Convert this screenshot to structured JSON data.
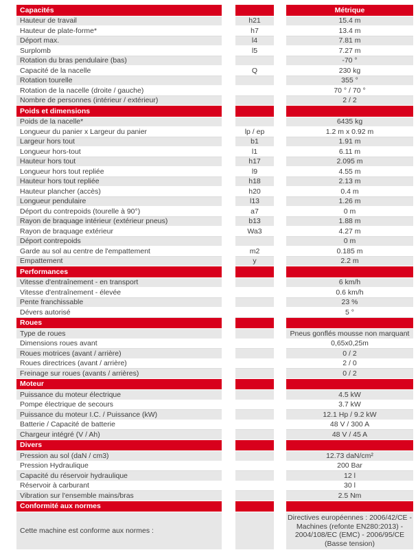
{
  "meta": {
    "accent_red": "#d8001c",
    "stripe_gray": "#e7e7e7",
    "text_color": "#3d3d3d"
  },
  "table": {
    "metric_header": "Métrique",
    "sections": [
      {
        "title": "Capacités",
        "rows": [
          {
            "label": "Hauteur de travail",
            "symbol": "h21",
            "value": "15.4 m"
          },
          {
            "label": "Hauteur de plate-forme*",
            "symbol": "h7",
            "value": "13.4 m"
          },
          {
            "label": "Déport max.",
            "symbol": "l4",
            "value": "7.81 m"
          },
          {
            "label": "Surplomb",
            "symbol": "l5",
            "value": "7.27 m"
          },
          {
            "label": "Rotation du bras pendulaire (bas)",
            "symbol": "",
            "value": "-70 °"
          },
          {
            "label": "Capacité de la nacelle",
            "symbol": "Q",
            "value": "230 kg"
          },
          {
            "label": "Rotation tourelle",
            "symbol": "",
            "value": "355 °"
          },
          {
            "label": "Rotation de la nacelle (droite / gauche)",
            "symbol": "",
            "value": "70 ° / 70 °"
          },
          {
            "label": "Nombre de personnes (intérieur / extérieur)",
            "symbol": "",
            "value": "2 / 2"
          }
        ]
      },
      {
        "title": "Poids et dimensions",
        "rows": [
          {
            "label": "Poids de la nacelle*",
            "symbol": "",
            "value": "6435 kg"
          },
          {
            "label": "Longueur du panier x Largeur du panier",
            "symbol": "lp / ep",
            "value": "1.2 m x 0.92 m"
          },
          {
            "label": "Largeur hors tout",
            "symbol": "b1",
            "value": "1.91 m"
          },
          {
            "label": "Longueur hors-tout",
            "symbol": "l1",
            "value": "6.11 m"
          },
          {
            "label": "Hauteur hors tout",
            "symbol": "h17",
            "value": "2.095 m"
          },
          {
            "label": "Longueur hors tout repliée",
            "symbol": "l9",
            "value": "4.55 m"
          },
          {
            "label": "Hauteur hors tout repliée",
            "symbol": "h18",
            "value": "2.13 m"
          },
          {
            "label": "Hauteur plancher (accès)",
            "symbol": "h20",
            "value": "0.4 m"
          },
          {
            "label": "Longueur pendulaire",
            "symbol": "l13",
            "value": "1.26 m"
          },
          {
            "label": "Déport du contrepoids (tourelle à 90°)",
            "symbol": "a7",
            "value": "0 m"
          },
          {
            "label": "Rayon de braquage intérieur (extérieur pneus)",
            "symbol": "b13",
            "value": "1.88 m"
          },
          {
            "label": "Rayon de braquage extérieur",
            "symbol": "Wa3",
            "value": "4.27 m"
          },
          {
            "label": "Déport contrepoids",
            "symbol": "",
            "value": "0 m"
          },
          {
            "label": "Garde au sol au centre de l'empattement",
            "symbol": "m2",
            "value": "0.185 m"
          },
          {
            "label": "Empattement",
            "symbol": "y",
            "value": "2.2 m"
          }
        ]
      },
      {
        "title": "Performances",
        "rows": [
          {
            "label": "Vitesse d'entraînement - en transport",
            "symbol": "",
            "value": "6 km/h"
          },
          {
            "label": "Vitesse d'entraînement - élevée",
            "symbol": "",
            "value": "0.6 km/h"
          },
          {
            "label": "Pente franchissable",
            "symbol": "",
            "value": "23 %"
          },
          {
            "label": "Dévers autorisé",
            "symbol": "",
            "value": "5 °"
          }
        ]
      },
      {
        "title": "Roues",
        "rows": [
          {
            "label": "Type de roues",
            "symbol": "",
            "value": "Pneus gonflés mousse non marquant"
          },
          {
            "label": "Dimensions roues avant",
            "symbol": "",
            "value": "0,65x0,25m"
          },
          {
            "label": "Roues motrices (avant / arrière)",
            "symbol": "",
            "value": "0 / 2"
          },
          {
            "label": "Roues directrices (avant / arrière)",
            "symbol": "",
            "value": "2 / 0"
          },
          {
            "label": "Freinage sur roues (avants / arrières)",
            "symbol": "",
            "value": "0 / 2"
          }
        ]
      },
      {
        "title": "Moteur",
        "rows": [
          {
            "label": "Puissance du moteur électrique",
            "symbol": "",
            "value": "4.5 kW"
          },
          {
            "label": "Pompe électrique de secours",
            "symbol": "",
            "value": "3.7 kW"
          },
          {
            "label": "Puissance du moteur I.C. / Puissance (kW)",
            "symbol": "",
            "value": "12.1 Hp / 9.2 kW"
          },
          {
            "label": "Batterie / Capacité de batterie",
            "symbol": "",
            "value": "48 V / 300 A"
          },
          {
            "label": "Chargeur intégré (V / Ah)",
            "symbol": "",
            "value": "48 V / 45 A"
          }
        ]
      },
      {
        "title": "Divers",
        "rows": [
          {
            "label": "Pression au sol (daN / cm3)",
            "symbol": "",
            "value": "12.73 daN/cm²"
          },
          {
            "label": "Pression Hydraulique",
            "symbol": "",
            "value": "200 Bar"
          },
          {
            "label": "Capacité du réservoir hydraulique",
            "symbol": "",
            "value": "12 l"
          },
          {
            "label": "Réservoir à carburant",
            "symbol": "",
            "value": "30 l"
          },
          {
            "label": "Vibration sur l'ensemble mains/bras",
            "symbol": "",
            "value": "2.5 Nm"
          }
        ]
      },
      {
        "title": "Conformité aux normes",
        "rows": [
          {
            "label": "Cette machine est conforme aux normes :",
            "symbol": "",
            "value": "Directives européennes : 2006/42/CE - Machines (refonte EN280:2013) - 2004/108/EC (EMC) - 2006/95/CE (Basse tension)",
            "multiline": true
          }
        ]
      }
    ]
  }
}
